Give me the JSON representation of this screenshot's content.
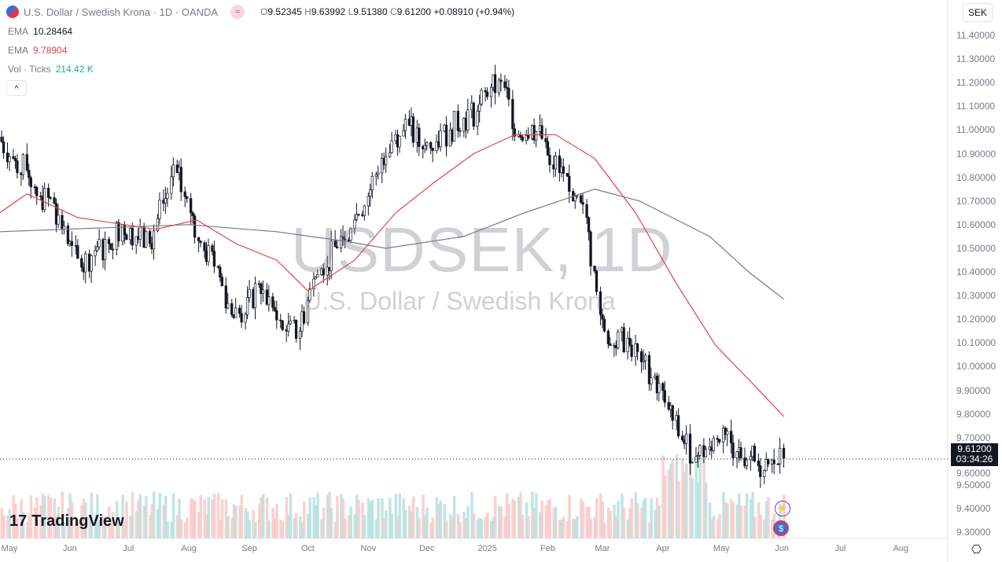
{
  "header": {
    "title": "U.S. Dollar / Swedish Krona · 1D · OANDA",
    "open_label": "O",
    "open": "9.52345",
    "high_label": "H",
    "high": "9.63992",
    "low_label": "L",
    "low": "9.51380",
    "close_label": "C",
    "close": "9.61200",
    "change": "+0.08910 (+0.94%)",
    "source_icon": "approx-icon"
  },
  "indicators": [
    {
      "name": "EMA",
      "value": "10.28464",
      "color": "#787b86"
    },
    {
      "name": "EMA",
      "value": "9.78904",
      "color": "#e0424b"
    },
    {
      "name": "Vol · Ticks",
      "value": "214.42 K",
      "color": "#26a69a"
    }
  ],
  "currency": "SEK",
  "watermark": {
    "symbol": "USDSEK, 1D",
    "description": "U.S. Dollar / Swedish Krona"
  },
  "price_tag": {
    "price": "9.61200",
    "countdown": "03:34:26"
  },
  "logo": "TradingView",
  "chart_data": {
    "type": "candlestick",
    "y_ticks": [
      "11.40000",
      "11.30000",
      "11.20000",
      "11.10000",
      "11.00000",
      "10.90000",
      "10.80000",
      "10.70000",
      "10.60000",
      "10.50000",
      "10.40000",
      "10.30000",
      "10.20000",
      "10.10000",
      "10.00000",
      "9.90000",
      "9.80000",
      "9.70000",
      "9.60000",
      "9.50000",
      "9.40000",
      "9.30000"
    ],
    "ylim": [
      9.3,
      11.4
    ],
    "x_ticks": [
      [
        "May",
        "2024-05-01"
      ],
      [
        "Jun",
        "2024-06-01"
      ],
      [
        "Jul",
        "2024-07-01"
      ],
      [
        "Aug",
        "2024-08-01"
      ],
      [
        "Sep",
        "2024-09-01"
      ],
      [
        "Oct",
        "2024-10-01"
      ],
      [
        "Nov",
        "2024-11-01"
      ],
      [
        "Dec",
        "2024-12-01"
      ],
      [
        "2025",
        "2025-01-01"
      ],
      [
        "Feb",
        "2025-02-01"
      ],
      [
        "Mar",
        "2025-03-01"
      ],
      [
        "Apr",
        "2025-04-01"
      ],
      [
        "May",
        "2025-05-01"
      ],
      [
        "Jun",
        "2025-06-01"
      ],
      [
        "Jul",
        "2025-07-01"
      ],
      [
        "Aug",
        "2025-08-01"
      ]
    ],
    "weekly_close": [
      [
        "2024-04-26",
        10.97
      ],
      [
        "2024-05-03",
        10.88
      ],
      [
        "2024-05-10",
        10.83
      ],
      [
        "2024-05-17",
        10.72
      ],
      [
        "2024-05-24",
        10.69
      ],
      [
        "2024-05-31",
        10.52
      ],
      [
        "2024-06-07",
        10.42
      ],
      [
        "2024-06-14",
        10.49
      ],
      [
        "2024-06-21",
        10.52
      ],
      [
        "2024-06-28",
        10.6
      ],
      [
        "2024-07-05",
        10.55
      ],
      [
        "2024-07-12",
        10.52
      ],
      [
        "2024-07-19",
        10.69
      ],
      [
        "2024-07-26",
        10.82
      ],
      [
        "2024-08-02",
        10.65
      ],
      [
        "2024-08-09",
        10.49
      ],
      [
        "2024-08-16",
        10.42
      ],
      [
        "2024-08-23",
        10.22
      ],
      [
        "2024-08-30",
        10.22
      ],
      [
        "2024-09-06",
        10.35
      ],
      [
        "2024-09-13",
        10.25
      ],
      [
        "2024-09-20",
        10.15
      ],
      [
        "2024-09-27",
        10.15
      ],
      [
        "2024-10-04",
        10.37
      ],
      [
        "2024-10-11",
        10.42
      ],
      [
        "2024-10-18",
        10.55
      ],
      [
        "2024-10-25",
        10.62
      ],
      [
        "2024-11-01",
        10.72
      ],
      [
        "2024-11-08",
        10.88
      ],
      [
        "2024-11-15",
        10.98
      ],
      [
        "2024-11-22",
        11.02
      ],
      [
        "2024-11-29",
        10.92
      ],
      [
        "2024-12-06",
        10.95
      ],
      [
        "2024-12-13",
        11.0
      ],
      [
        "2024-12-20",
        11.05
      ],
      [
        "2024-12-27",
        11.08
      ],
      [
        "2025-01-03",
        11.18
      ],
      [
        "2025-01-10",
        11.18
      ],
      [
        "2025-01-17",
        10.98
      ],
      [
        "2025-01-24",
        11.02
      ],
      [
        "2025-01-31",
        10.95
      ],
      [
        "2025-02-07",
        10.82
      ],
      [
        "2025-02-14",
        10.7
      ],
      [
        "2025-02-21",
        10.63
      ],
      [
        "2025-02-28",
        10.22
      ],
      [
        "2025-03-07",
        10.09
      ],
      [
        "2025-03-14",
        10.12
      ],
      [
        "2025-03-21",
        10.02
      ],
      [
        "2025-03-28",
        9.96
      ],
      [
        "2025-04-04",
        9.82
      ],
      [
        "2025-04-11",
        9.69
      ],
      [
        "2025-04-18",
        9.62
      ],
      [
        "2025-04-25",
        9.66
      ],
      [
        "2025-05-02",
        9.74
      ],
      [
        "2025-05-09",
        9.64
      ],
      [
        "2025-05-16",
        9.62
      ],
      [
        "2025-05-23",
        9.56
      ],
      [
        "2025-06-02",
        9.612
      ]
    ],
    "ema_slow": {
      "color": "#787b86",
      "points": [
        [
          "2024-04-26",
          10.57
        ],
        [
          "2024-08-01",
          10.6
        ],
        [
          "2024-09-15",
          10.57
        ],
        [
          "2024-10-20",
          10.53
        ],
        [
          "2024-11-10",
          10.5
        ],
        [
          "2024-12-20",
          10.55
        ],
        [
          "2025-01-20",
          10.65
        ],
        [
          "2025-02-25",
          10.75
        ],
        [
          "2025-03-20",
          10.7
        ],
        [
          "2025-04-25",
          10.55
        ],
        [
          "2025-05-15",
          10.4
        ],
        [
          "2025-06-02",
          10.285
        ]
      ]
    },
    "ema_fast": {
      "color": "#e0424b",
      "points": [
        [
          "2024-04-26",
          10.65
        ],
        [
          "2024-05-10",
          10.73
        ],
        [
          "2024-06-05",
          10.63
        ],
        [
          "2024-07-15",
          10.58
        ],
        [
          "2024-08-05",
          10.62
        ],
        [
          "2024-08-25",
          10.52
        ],
        [
          "2024-09-15",
          10.45
        ],
        [
          "2024-10-01",
          10.32
        ],
        [
          "2024-10-25",
          10.45
        ],
        [
          "2024-11-15",
          10.65
        ],
        [
          "2024-12-05",
          10.78
        ],
        [
          "2024-12-25",
          10.9
        ],
        [
          "2025-01-15",
          10.98
        ],
        [
          "2025-02-05",
          10.98
        ],
        [
          "2025-02-25",
          10.88
        ],
        [
          "2025-03-18",
          10.65
        ],
        [
          "2025-04-08",
          10.35
        ],
        [
          "2025-04-28",
          10.09
        ],
        [
          "2025-05-18",
          9.92
        ],
        [
          "2025-06-02",
          9.789
        ]
      ]
    },
    "up_color": "#131722",
    "down_color": "#131722",
    "volume_up": "#b2dfdb",
    "volume_down": "#f7c5c5"
  }
}
